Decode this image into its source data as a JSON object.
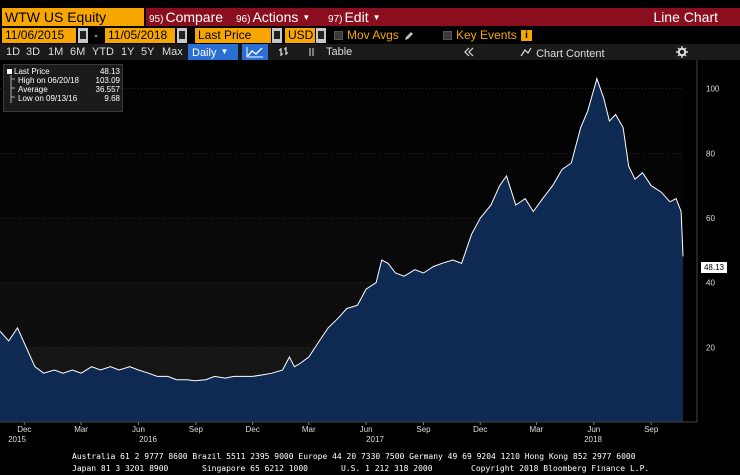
{
  "header": {
    "ticker": "WTW US Equity",
    "compare_num": "95)",
    "compare_label": "Compare",
    "actions_num": "96)",
    "actions_label": "Actions",
    "edit_num": "97)",
    "edit_label": "Edit",
    "view_title": "Line Chart"
  },
  "controls": {
    "start_date": "11/06/2015",
    "date_sep": "-",
    "end_date": "11/05/2018",
    "price_field": "Last Price",
    "currency": "USD",
    "mov_avgs": "Mov Avgs",
    "key_events": "Key Events"
  },
  "toolbar": {
    "periods": [
      "1D",
      "3D",
      "1M",
      "6M",
      "YTD",
      "1Y",
      "5Y",
      "Max"
    ],
    "frequency": "Daily",
    "table_label": "Table",
    "chart_content_label": "Chart Content"
  },
  "legend": {
    "last_price_label": "Last Price",
    "last_price_value": "48.13",
    "high_label": "High on 06/20/18",
    "high_value": "103.09",
    "average_label": "Average",
    "average_value": "36.557",
    "low_label": "Low on 09/13/16",
    "low_value": "9.68"
  },
  "price_tag": "48.13",
  "footer": {
    "line1": "Australia 61 2 9777 8600 Brazil 5511 2395 9000 Europe 44 20 7330 7500 Germany 49 69 9204 1210 Hong Kong 852 2977 6000",
    "line2_left": "Japan 81 3 3201 8900",
    "line2_mid1": "Singapore 65 6212 1000",
    "line2_mid2": "U.S. 1 212 318 2000",
    "line2_right": "Copyright 2018 Bloomberg Finance L.P."
  },
  "colors": {
    "accent": "#f7a600",
    "header_red": "#8a0e1e",
    "area_fill": "#0f2a52",
    "line": "#ffffff"
  },
  "chart_data": {
    "type": "area",
    "y_ticks": [
      20,
      40,
      60,
      80,
      100
    ],
    "ylim": [
      0,
      110
    ],
    "x_month_labels": [
      "Dec",
      "Mar",
      "Jun",
      "Sep",
      "Dec",
      "Mar",
      "Jun",
      "Sep",
      "Dec",
      "Mar",
      "Jun",
      "Sep"
    ],
    "x_year_labels": [
      "2015",
      "2016",
      "2017",
      "2018"
    ],
    "grid": true,
    "legend_position": "top-left",
    "series": [
      {
        "values": [
          [
            "2015-11-06",
            25
          ],
          [
            "2015-11-20",
            22
          ],
          [
            "2015-12-04",
            26
          ],
          [
            "2015-12-18",
            20
          ],
          [
            "2016-01-01",
            14
          ],
          [
            "2016-01-15",
            12
          ],
          [
            "2016-02-01",
            13
          ],
          [
            "2016-02-15",
            12
          ],
          [
            "2016-03-01",
            13
          ],
          [
            "2016-03-15",
            12
          ],
          [
            "2016-04-01",
            14
          ],
          [
            "2016-04-15",
            13
          ],
          [
            "2016-05-01",
            14
          ],
          [
            "2016-05-15",
            13
          ],
          [
            "2016-06-01",
            14
          ],
          [
            "2016-06-15",
            13
          ],
          [
            "2016-07-01",
            12
          ],
          [
            "2016-07-15",
            11
          ],
          [
            "2016-08-01",
            11
          ],
          [
            "2016-08-15",
            10
          ],
          [
            "2016-09-01",
            10
          ],
          [
            "2016-09-13",
            9.68
          ],
          [
            "2016-10-01",
            10
          ],
          [
            "2016-10-15",
            11
          ],
          [
            "2016-11-01",
            10.5
          ],
          [
            "2016-11-15",
            11
          ],
          [
            "2016-12-01",
            11
          ],
          [
            "2016-12-15",
            11
          ],
          [
            "2017-01-01",
            11.5
          ],
          [
            "2017-01-15",
            12
          ],
          [
            "2017-02-01",
            13
          ],
          [
            "2017-02-12",
            17
          ],
          [
            "2017-02-20",
            14
          ],
          [
            "2017-03-01",
            15
          ],
          [
            "2017-03-15",
            17
          ],
          [
            "2017-04-01",
            22
          ],
          [
            "2017-04-15",
            26
          ],
          [
            "2017-05-01",
            29
          ],
          [
            "2017-05-15",
            32
          ],
          [
            "2017-06-01",
            33
          ],
          [
            "2017-06-15",
            38
          ],
          [
            "2017-07-01",
            40
          ],
          [
            "2017-07-10",
            47
          ],
          [
            "2017-07-20",
            46
          ],
          [
            "2017-08-01",
            43
          ],
          [
            "2017-08-15",
            42
          ],
          [
            "2017-09-01",
            44
          ],
          [
            "2017-09-15",
            43
          ],
          [
            "2017-10-01",
            45
          ],
          [
            "2017-10-15",
            46
          ],
          [
            "2017-11-01",
            47
          ],
          [
            "2017-11-15",
            46
          ],
          [
            "2017-12-01",
            55
          ],
          [
            "2017-12-15",
            60
          ],
          [
            "2018-01-01",
            64
          ],
          [
            "2018-01-15",
            70
          ],
          [
            "2018-01-26",
            73
          ],
          [
            "2018-02-10",
            64
          ],
          [
            "2018-02-25",
            66
          ],
          [
            "2018-03-10",
            62
          ],
          [
            "2018-03-25",
            66
          ],
          [
            "2018-04-10",
            70
          ],
          [
            "2018-04-25",
            75
          ],
          [
            "2018-05-10",
            77
          ],
          [
            "2018-05-25",
            88
          ],
          [
            "2018-06-05",
            93
          ],
          [
            "2018-06-20",
            103.09
          ],
          [
            "2018-07-01",
            97
          ],
          [
            "2018-07-10",
            90
          ],
          [
            "2018-07-20",
            92
          ],
          [
            "2018-08-01",
            88
          ],
          [
            "2018-08-10",
            76
          ],
          [
            "2018-08-20",
            72
          ],
          [
            "2018-09-01",
            74
          ],
          [
            "2018-09-15",
            70
          ],
          [
            "2018-10-01",
            68
          ],
          [
            "2018-10-15",
            65
          ],
          [
            "2018-10-25",
            66
          ],
          [
            "2018-11-02",
            62
          ],
          [
            "2018-11-05",
            48.13
          ]
        ]
      }
    ]
  }
}
